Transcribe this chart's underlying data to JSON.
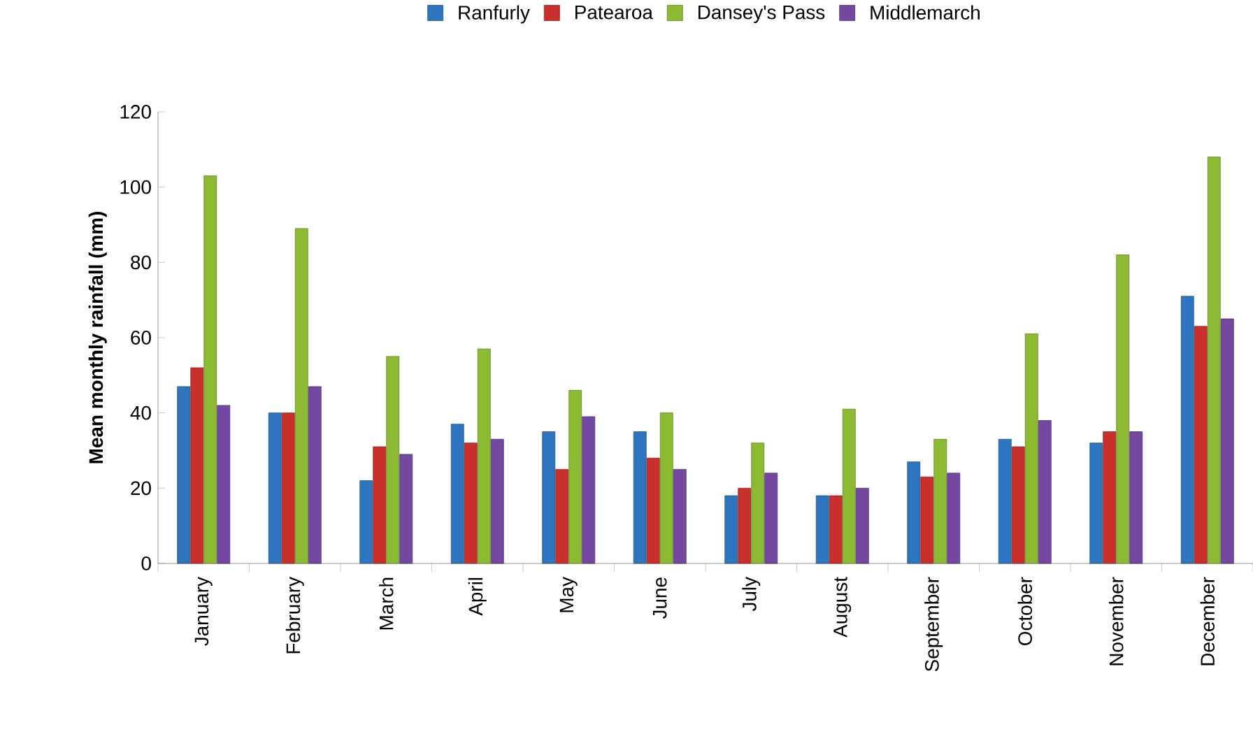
{
  "chart_data": {
    "type": "bar",
    "ylabel": "Mean monthly rainfall (mm)",
    "categories": [
      "January",
      "February",
      "March",
      "April",
      "May",
      "June",
      "July",
      "August",
      "September",
      "October",
      "November",
      "December"
    ],
    "series": [
      {
        "name": "Ranfurly",
        "color": "#2e75c0",
        "values": [
          47,
          40,
          22,
          37,
          35,
          35,
          18,
          18,
          27,
          33,
          32,
          71
        ]
      },
      {
        "name": "Patearoa",
        "color": "#c9302c",
        "values": [
          52,
          40,
          31,
          32,
          25,
          28,
          20,
          18,
          23,
          31,
          35,
          63
        ]
      },
      {
        "name": "Dansey's Pass",
        "color": "#8cba33",
        "values": [
          103,
          89,
          55,
          57,
          46,
          40,
          32,
          41,
          33,
          61,
          82,
          108
        ]
      },
      {
        "name": "Middlemarch",
        "color": "#7447a0",
        "values": [
          42,
          47,
          29,
          33,
          39,
          25,
          24,
          20,
          24,
          38,
          35,
          65
        ]
      }
    ],
    "ylim": [
      0,
      120
    ],
    "yticks": [
      0,
      20,
      40,
      60,
      80,
      100,
      120
    ],
    "grid": false,
    "legend": "top"
  }
}
